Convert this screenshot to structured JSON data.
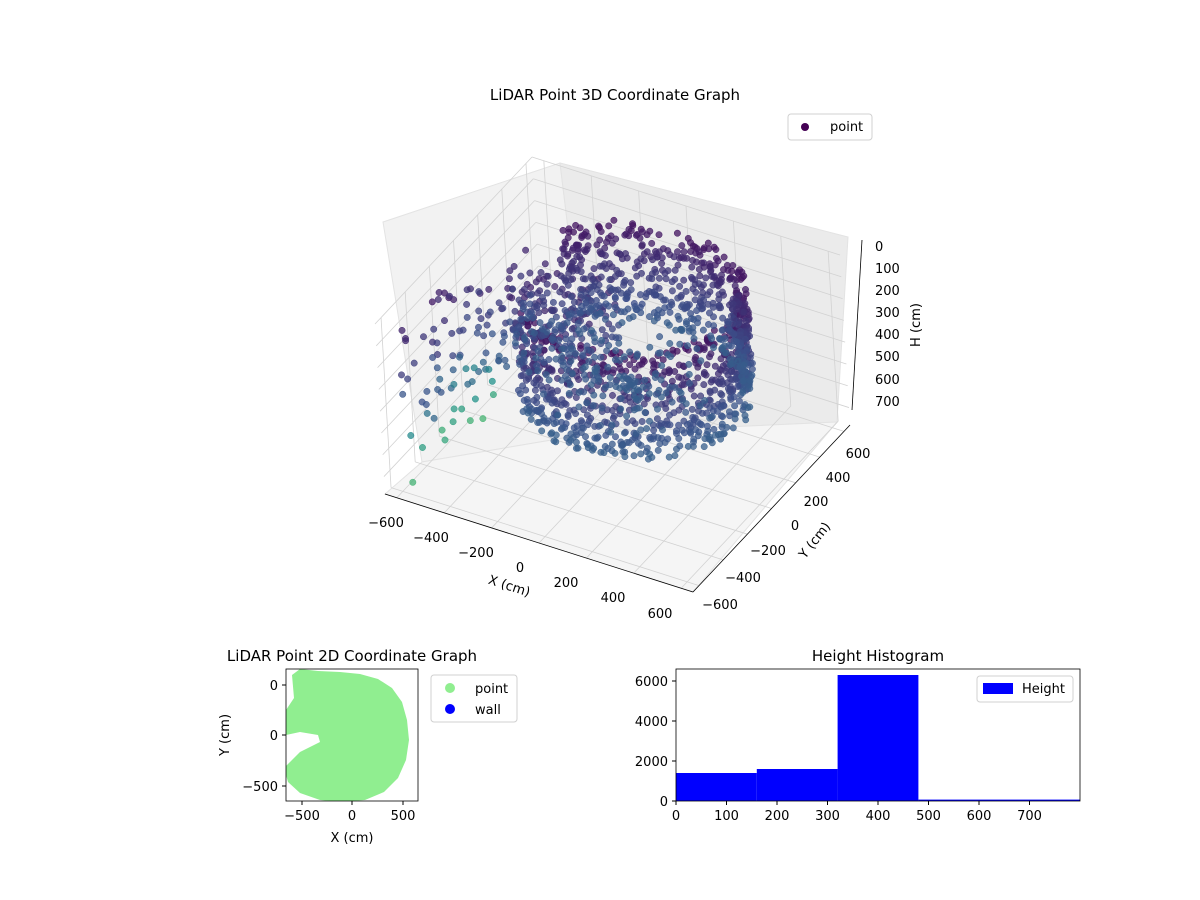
{
  "chart_data": [
    {
      "type": "scatter3d",
      "title": "LiDAR Point 3D Coordinate Graph",
      "xlabel": "X (cm)",
      "ylabel": "Y (cm)",
      "zlabel": "H (cm)",
      "xticks": [
        "−600",
        "−400",
        "−200",
        "0",
        "200",
        "400",
        "600"
      ],
      "yticks": [
        "−600",
        "−400",
        "−200",
        "0",
        "200",
        "400",
        "600"
      ],
      "zticks": [
        "0",
        "100",
        "200",
        "300",
        "400",
        "500",
        "600",
        "700"
      ],
      "xlim": [
        -650,
        650
      ],
      "ylim": [
        -650,
        650
      ],
      "zlim": [
        0,
        780
      ],
      "z_inverted": true,
      "colormap": "viridis",
      "legend": {
        "label": "point",
        "placement": "top-right"
      },
      "grid": true,
      "shape": {
        "cylinder_radius": 450,
        "cylinder_center": [
          50,
          50
        ],
        "height_range": [
          0,
          480
        ],
        "opening_angle_deg": [
          150,
          230
        ]
      }
    },
    {
      "type": "scatter",
      "title": "LiDAR Point 2D Coordinate Graph",
      "xlabel": "X (cm)",
      "ylabel": "Y (cm)",
      "xticks": [
        "−500",
        "0",
        "500"
      ],
      "yticks": [
        "−500",
        "0",
        "500"
      ],
      "xlim": [
        -650,
        650
      ],
      "ylim": [
        -650,
        650
      ],
      "series": [
        {
          "name": "point",
          "color": "#90ee90"
        },
        {
          "name": "wall",
          "color": "#0000ff"
        }
      ],
      "legend_placement": "outside-right"
    },
    {
      "type": "bar",
      "title": "Height Histogram",
      "legend": "Height",
      "color": "#0000ff",
      "bins": [
        {
          "start": 0,
          "end": 160,
          "count": 1400
        },
        {
          "start": 160,
          "end": 320,
          "count": 1600
        },
        {
          "start": 320,
          "end": 480,
          "count": 6300
        },
        {
          "start": 480,
          "end": 800,
          "count": 70
        }
      ],
      "xticks": [
        "0",
        "100",
        "200",
        "300",
        "400",
        "500",
        "600",
        "700"
      ],
      "yticks": [
        "0",
        "2000",
        "4000",
        "6000"
      ],
      "xlim": [
        0,
        800
      ],
      "ylim": [
        0,
        6600
      ],
      "legend_placement": "top-right"
    }
  ]
}
